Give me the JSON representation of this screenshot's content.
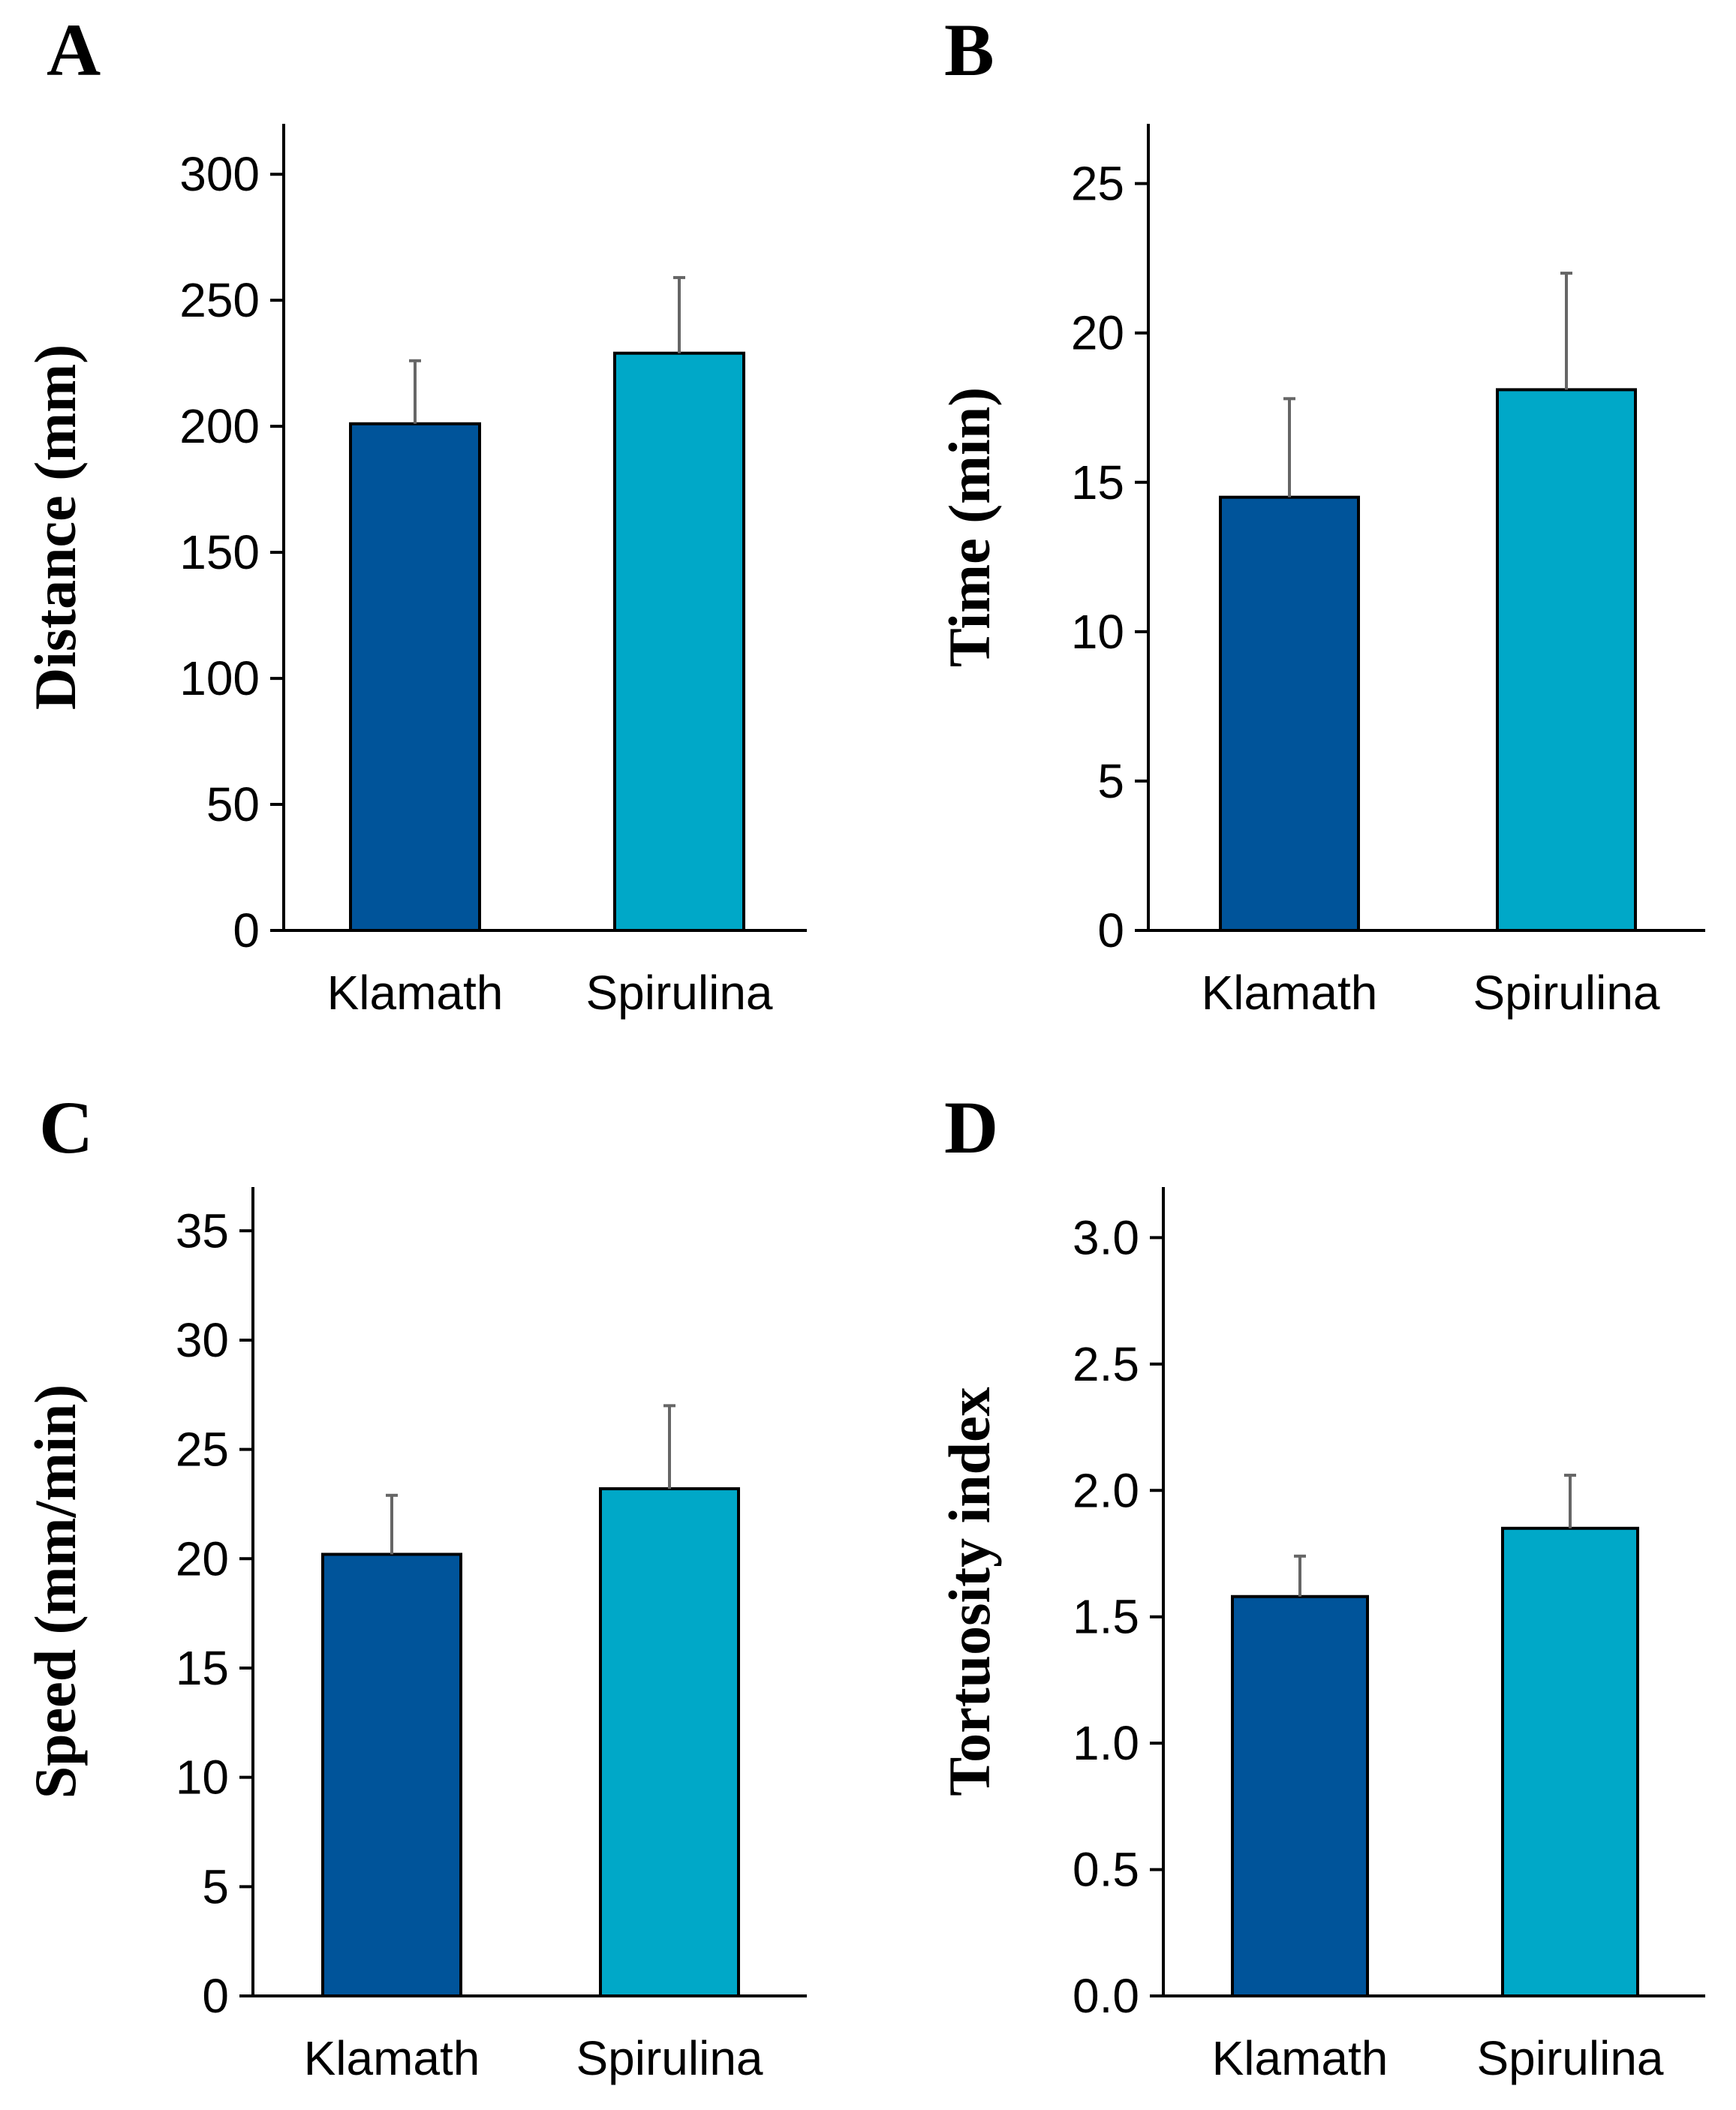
{
  "colors": {
    "klamath": "#00549A",
    "spirulina": "#00A8C8",
    "axis": "#000000",
    "error_bar": "#666666"
  },
  "chart_data": [
    {
      "panel": "A",
      "type": "bar",
      "categories": [
        "Klamath",
        "Spirulina"
      ],
      "values": [
        201,
        229
      ],
      "errors": [
        25,
        30
      ],
      "ylabel": "Distance (mm)",
      "xlabel": "",
      "ylim": [
        0,
        320
      ],
      "yticks": [
        0,
        50,
        100,
        150,
        200,
        250,
        300
      ],
      "ytick_labels": [
        "0",
        "50",
        "100",
        "150",
        "200",
        "250",
        "300"
      ]
    },
    {
      "panel": "B",
      "type": "bar",
      "categories": [
        "Klamath",
        "Spirulina"
      ],
      "values": [
        14.5,
        18.1
      ],
      "errors": [
        3.3,
        3.9
      ],
      "ylabel": "Time (min)",
      "xlabel": "",
      "ylim": [
        0,
        27
      ],
      "yticks": [
        0,
        5,
        10,
        15,
        20,
        25
      ],
      "ytick_labels": [
        "0",
        "5",
        "10",
        "15",
        "20",
        "25"
      ]
    },
    {
      "panel": "C",
      "type": "bar",
      "categories": [
        "Klamath",
        "Spirulina"
      ],
      "values": [
        20.2,
        23.2
      ],
      "errors": [
        2.7,
        3.8
      ],
      "ylabel": "Speed (mm/min)",
      "xlabel": "",
      "ylim": [
        0,
        37
      ],
      "yticks": [
        0,
        5,
        10,
        15,
        20,
        25,
        30,
        35
      ],
      "ytick_labels": [
        "0",
        "5",
        "10",
        "15",
        "20",
        "25",
        "30",
        "35"
      ]
    },
    {
      "panel": "D",
      "type": "bar",
      "categories": [
        "Klamath",
        "Spirulina"
      ],
      "values": [
        1.58,
        1.85
      ],
      "errors": [
        0.16,
        0.21
      ],
      "ylabel": "Tortuosity index",
      "xlabel": "",
      "ylim": [
        0,
        3.2
      ],
      "yticks": [
        0,
        0.5,
        1.0,
        1.5,
        2.0,
        2.5,
        3.0
      ],
      "ytick_labels": [
        "0.0",
        "0.5",
        "1.0",
        "1.5",
        "2.0",
        "2.5",
        "3.0"
      ]
    }
  ]
}
